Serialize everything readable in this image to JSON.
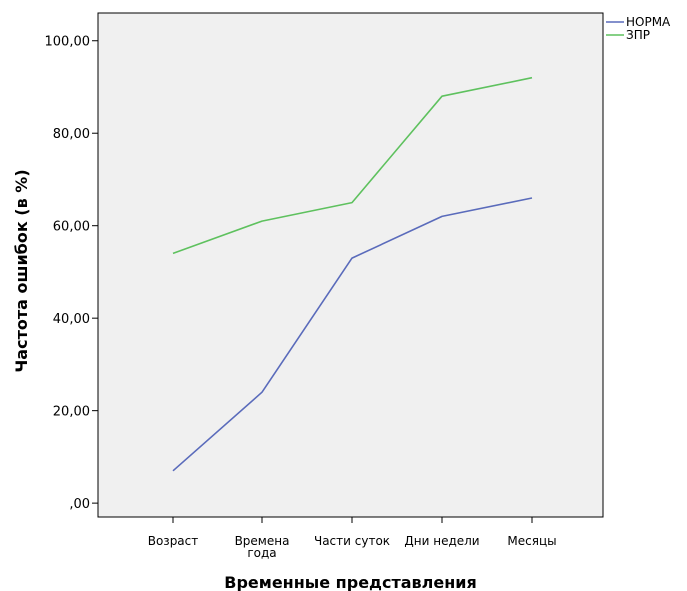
{
  "chart_data": {
    "type": "line",
    "title": "",
    "xlabel": "Временные представления",
    "ylabel": "Частота ошибок (в %)",
    "categories": [
      "Возраст",
      "Времена\nгода",
      "Части суток",
      "Дни недели",
      "Месяцы"
    ],
    "ylim": [
      -3,
      106
    ],
    "yticks": [
      0,
      20,
      40,
      60,
      80,
      100
    ],
    "ytick_labels": [
      ",00",
      "20,00",
      "40,00",
      "60,00",
      "80,00",
      "100,00"
    ],
    "grid": false,
    "legend_position": "top-right, outside plot",
    "plot_background": "#f0f0f0",
    "series": [
      {
        "name": "НОРМА",
        "color": "#5a6bbb",
        "values": [
          7,
          24,
          53,
          62,
          66
        ]
      },
      {
        "name": "ЗПР",
        "color": "#5ec15e",
        "values": [
          54,
          61,
          65,
          88,
          92
        ]
      }
    ]
  }
}
